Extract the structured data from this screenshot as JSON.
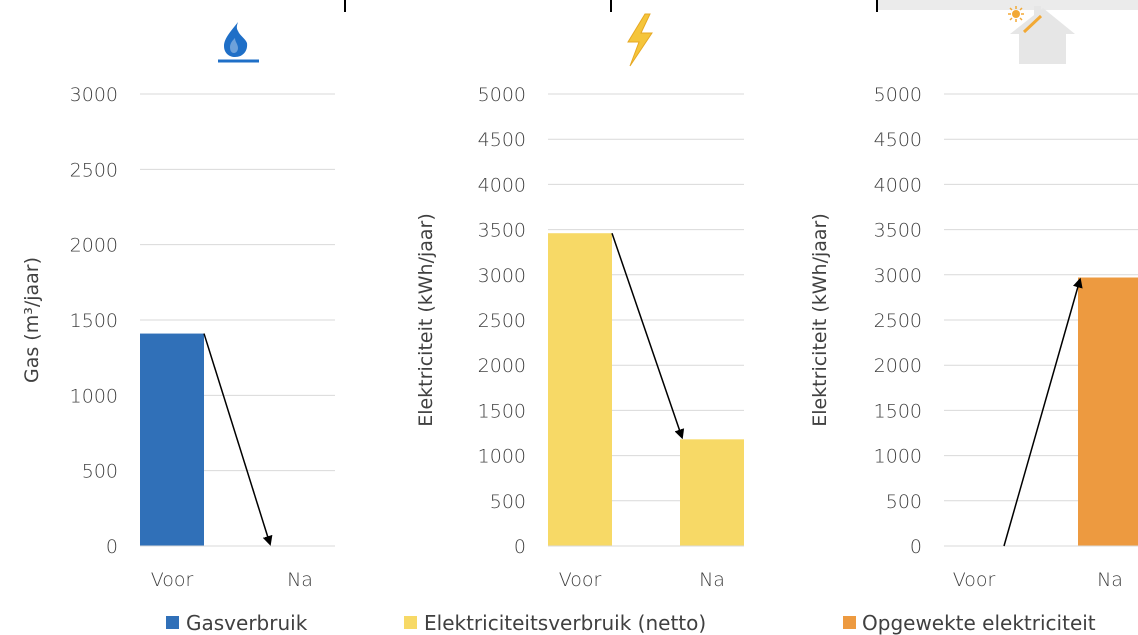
{
  "chart_data": [
    {
      "type": "bar",
      "icon": "gas-flame-icon",
      "categories": [
        "Voor",
        "Na"
      ],
      "series": [
        {
          "name": "Gasverbruik",
          "values": [
            1410,
            0
          ],
          "color": "#3070b8"
        }
      ],
      "ylabel": "Gas (m³/jaar)",
      "ylim": [
        0,
        3000
      ],
      "yticks": [
        0,
        500,
        1000,
        1500,
        2000,
        2500,
        3000
      ],
      "grid": true,
      "arrow": "down",
      "legend_position": "bottom"
    },
    {
      "type": "bar",
      "icon": "lightning-icon",
      "categories": [
        "Voor",
        "Na"
      ],
      "series": [
        {
          "name": "Elektriciteitsverbruik (netto)",
          "values": [
            3460,
            1180
          ],
          "color": "#f7d966"
        }
      ],
      "ylabel": "Elektriciteit (kWh/jaar)",
      "ylim": [
        0,
        5000
      ],
      "yticks": [
        0,
        500,
        1000,
        1500,
        2000,
        2500,
        3000,
        3500,
        4000,
        4500,
        5000
      ],
      "grid": true,
      "arrow": "down",
      "legend_position": "bottom"
    },
    {
      "type": "bar",
      "icon": "solar-house-icon",
      "categories": [
        "Voor",
        "Na"
      ],
      "series": [
        {
          "name": "Opgewekte elektriciteit",
          "values": [
            0,
            2970
          ],
          "color": "#ed9a40"
        }
      ],
      "ylabel": "Elektriciteit (kWh/jaar)",
      "ylim": [
        0,
        5000
      ],
      "yticks": [
        0,
        500,
        1000,
        1500,
        2000,
        2500,
        3000,
        3500,
        4000,
        4500,
        5000
      ],
      "grid": true,
      "arrow": "up",
      "legend_position": "bottom"
    }
  ]
}
